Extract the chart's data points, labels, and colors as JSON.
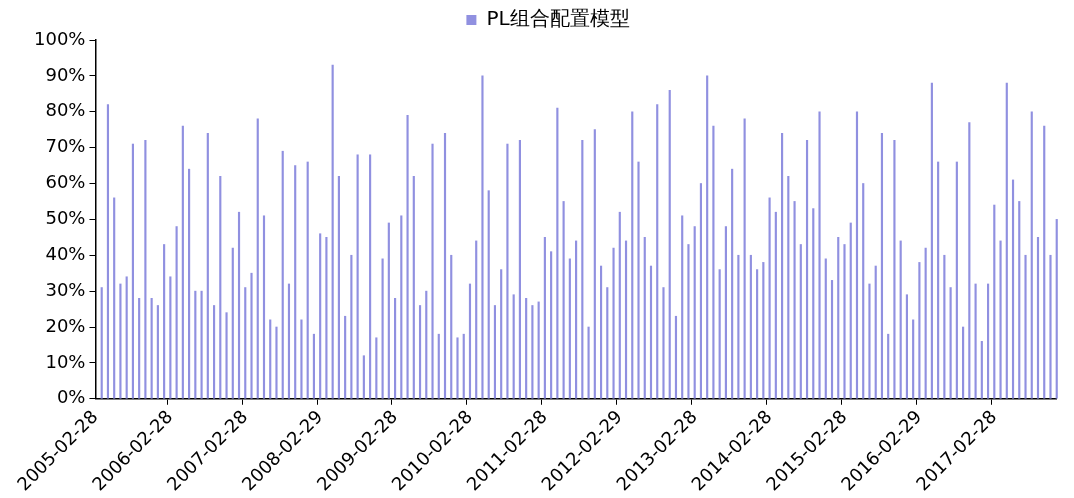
{
  "chart_data": {
    "type": "bar",
    "categories": [
      "2005-02-28",
      null,
      null,
      null,
      null,
      null,
      null,
      null,
      null,
      null,
      null,
      null,
      "2006-02-28",
      null,
      null,
      null,
      null,
      null,
      null,
      null,
      null,
      null,
      null,
      null,
      "2007-02-28",
      null,
      null,
      null,
      null,
      null,
      null,
      null,
      null,
      null,
      null,
      null,
      "2008-02-29",
      null,
      null,
      null,
      null,
      null,
      null,
      null,
      null,
      null,
      null,
      null,
      "2009-02-28",
      null,
      null,
      null,
      null,
      null,
      null,
      null,
      null,
      null,
      null,
      null,
      "2010-02-28",
      null,
      null,
      null,
      null,
      null,
      null,
      null,
      null,
      null,
      null,
      null,
      "2011-02-28",
      null,
      null,
      null,
      null,
      null,
      null,
      null,
      null,
      null,
      null,
      null,
      "2012-02-29",
      null,
      null,
      null,
      null,
      null,
      null,
      null,
      null,
      null,
      null,
      null,
      "2013-02-28",
      null,
      null,
      null,
      null,
      null,
      null,
      null,
      null,
      null,
      null,
      null,
      "2014-02-28",
      null,
      null,
      null,
      null,
      null,
      null,
      null,
      null,
      null,
      null,
      null,
      "2015-02-28",
      null,
      null,
      null,
      null,
      null,
      null,
      null,
      null,
      null,
      null,
      null,
      "2016-02-29",
      null,
      null,
      null,
      null,
      null,
      null,
      null,
      null,
      null,
      null,
      null,
      "2017-02-28",
      null,
      null,
      null,
      null,
      null,
      null,
      null,
      null,
      null,
      null
    ],
    "series": [
      {
        "name": "PL组合配置模型",
        "color": "#9090e0",
        "values": [
          null,
          31,
          82,
          56,
          32,
          34,
          71,
          28,
          72,
          28,
          26,
          43,
          34,
          48,
          76,
          64,
          30,
          30,
          74,
          26,
          62,
          24,
          42,
          52,
          31,
          35,
          78,
          51,
          22,
          20,
          69,
          32,
          65,
          22,
          66,
          18,
          46,
          45,
          93,
          62,
          23,
          40,
          68,
          12,
          68,
          17,
          39,
          49,
          28,
          51,
          79,
          62,
          26,
          30,
          71,
          18,
          74,
          40,
          17,
          18,
          32,
          44,
          90,
          58,
          26,
          36,
          71,
          29,
          72,
          28,
          26,
          27,
          45,
          41,
          81,
          55,
          39,
          44,
          72,
          20,
          75,
          37,
          31,
          42,
          52,
          44,
          80,
          66,
          45,
          37,
          82,
          31,
          86,
          23,
          51,
          43,
          48,
          60,
          90,
          76,
          36,
          48,
          64,
          40,
          78,
          40,
          36,
          38,
          56,
          52,
          74,
          62,
          55,
          43,
          72,
          53,
          80,
          39,
          33,
          45,
          43,
          49,
          80,
          60,
          32,
          37,
          74,
          18,
          72,
          44,
          29,
          22,
          38,
          42,
          88,
          66,
          40,
          31,
          66,
          20,
          77,
          32,
          16,
          32,
          54,
          44,
          88,
          61,
          55,
          40,
          80,
          45,
          76,
          40,
          50
        ]
      }
    ],
    "ylim": [
      0,
      100
    ],
    "yticks": [
      {
        "value": 0,
        "label": "0%"
      },
      {
        "value": 10,
        "label": "10%"
      },
      {
        "value": 20,
        "label": "20%"
      },
      {
        "value": 30,
        "label": "30%"
      },
      {
        "value": 40,
        "label": "40%"
      },
      {
        "value": 50,
        "label": "50%"
      },
      {
        "value": 60,
        "label": "60%"
      },
      {
        "value": 70,
        "label": "70%"
      },
      {
        "value": 80,
        "label": "80%"
      },
      {
        "value": 90,
        "label": "90%"
      },
      {
        "value": 100,
        "label": "100%"
      }
    ],
    "legend": "top"
  }
}
